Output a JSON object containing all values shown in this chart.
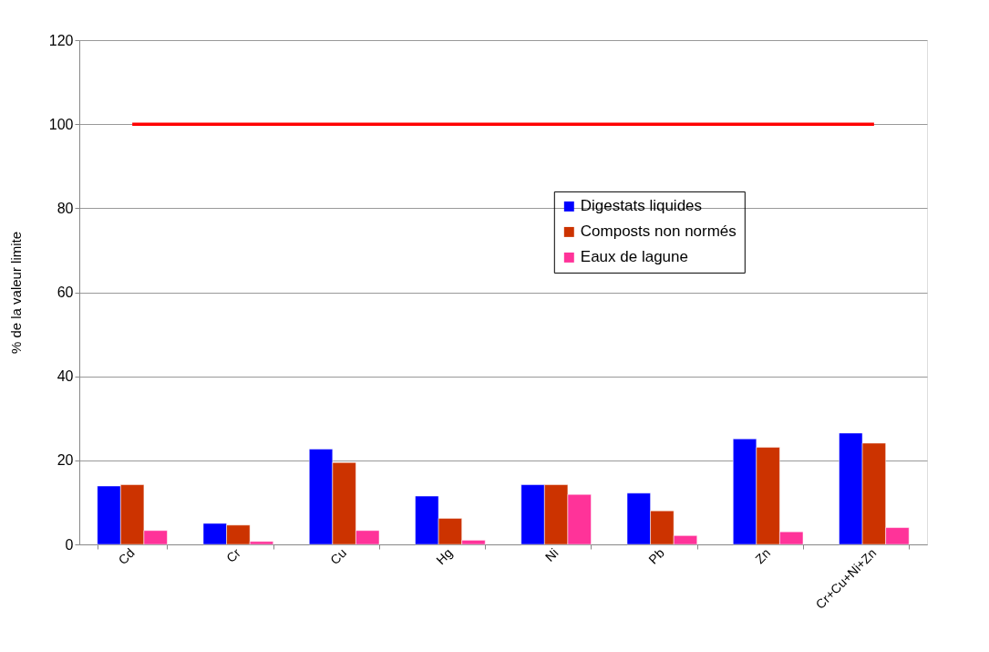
{
  "chart_data": {
    "type": "bar",
    "ylabel": "% de la valeur limite",
    "categories": [
      "Cd",
      "Cr",
      "Cu",
      "Hg",
      "Ni",
      "Pb",
      "Zn",
      "Cr+Cu+Ni+Zn"
    ],
    "series": [
      {
        "name": "Digestats liquides",
        "color": "#0000ff",
        "values": [
          13.9,
          5.0,
          22.7,
          11.5,
          14.2,
          12.2,
          25.1,
          26.5
        ]
      },
      {
        "name": "Composts non normés",
        "color": "#cc3300",
        "values": [
          14.2,
          4.6,
          19.5,
          6.2,
          14.2,
          8.0,
          23.1,
          24.1
        ]
      },
      {
        "name": "Eaux de lagune",
        "color": "#ff3399",
        "values": [
          3.3,
          0.7,
          3.3,
          1.0,
          11.9,
          2.1,
          3.0,
          4.0
        ]
      },
      {
        "type": "line",
        "color": "#ff0000",
        "values": [
          100,
          100,
          100,
          100,
          100,
          100,
          100,
          100
        ]
      }
    ],
    "ylim": [
      0,
      120
    ],
    "yticks": [
      0,
      20,
      40,
      60,
      80,
      100,
      120
    ],
    "grid": "y",
    "legend": "right"
  }
}
